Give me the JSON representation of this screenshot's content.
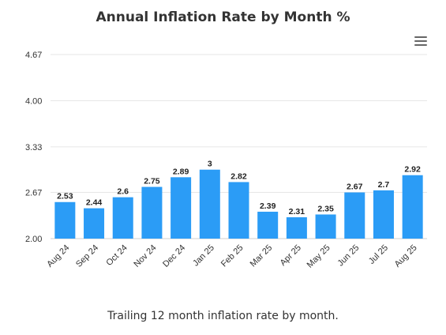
{
  "chart_data": {
    "type": "bar",
    "title": "Annual Inflation Rate by Month %",
    "caption": "Trailing 12 month inflation rate by month.",
    "categories": [
      "Aug 24",
      "Sep 24",
      "Oct 24",
      "Nov 24",
      "Dec 24",
      "Jan 25",
      "Feb 25",
      "Mar 25",
      "Apr 25",
      "May 25",
      "Jun 25",
      "Jul 25",
      "Aug 25"
    ],
    "values": [
      2.53,
      2.44,
      2.6,
      2.75,
      2.89,
      3,
      2.82,
      2.39,
      2.31,
      2.35,
      2.67,
      2.7,
      2.92
    ],
    "data_labels": [
      "2.53",
      "2.44",
      "2.6",
      "2.75",
      "2.89",
      "3",
      "2.82",
      "2.39",
      "2.31",
      "2.35",
      "2.67",
      "2.7",
      "2.92"
    ],
    "y_ticks": [
      2.0,
      2.67,
      3.33,
      4.0,
      4.67
    ],
    "y_tick_labels": [
      "2.00",
      "2.67",
      "3.33",
      "4.00",
      "4.67"
    ],
    "ylim": [
      2.0,
      4.67
    ],
    "grid": true,
    "bar_color": "#2b9cf6",
    "xlabel": "",
    "ylabel": ""
  },
  "toolbar": {
    "menu_icon": "hamburger-menu-icon"
  }
}
